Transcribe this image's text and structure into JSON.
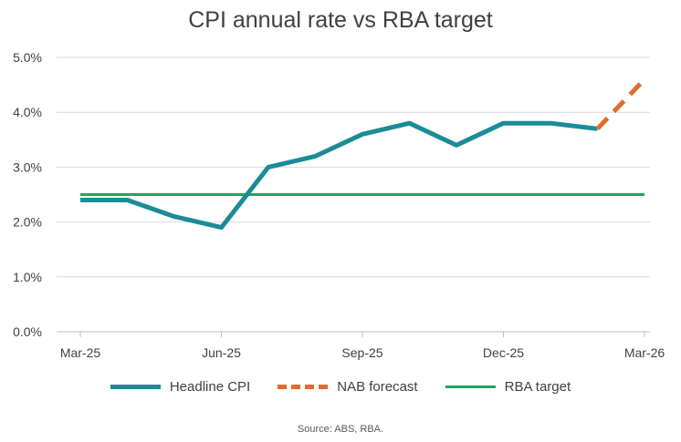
{
  "chart_data": {
    "type": "line",
    "title": "CPI annual rate vs RBA target",
    "x": [
      "Mar-25",
      "Apr-25",
      "May-25",
      "Jun-25",
      "Jul-25",
      "Aug-25",
      "Sep-25",
      "Oct-25",
      "Nov-25",
      "Dec-25",
      "Jan-26",
      "Feb-26",
      "Mar-26"
    ],
    "x_tick_labels": [
      "Mar-25",
      "Jun-25",
      "Sep-25",
      "Dec-25",
      "Mar-26"
    ],
    "ylim": [
      0,
      5
    ],
    "y_tick_labels": [
      "0.0%",
      "1.0%",
      "2.0%",
      "3.0%",
      "4.0%",
      "5.0%"
    ],
    "series": [
      {
        "name": "Headline CPI",
        "color": "#1a8c96",
        "style": "solid",
        "values": [
          2.4,
          2.4,
          2.1,
          1.9,
          3.0,
          3.2,
          3.6,
          3.8,
          3.4,
          3.8,
          3.8,
          3.7,
          null
        ]
      },
      {
        "name": "NAB forecast",
        "color": "#e06c2e",
        "style": "dashed",
        "values": [
          null,
          null,
          null,
          null,
          null,
          null,
          null,
          null,
          null,
          null,
          null,
          3.7,
          4.6
        ]
      },
      {
        "name": "RBA target",
        "color": "#1fa65c",
        "style": "solid",
        "values": [
          2.5,
          2.5,
          2.5,
          2.5,
          2.5,
          2.5,
          2.5,
          2.5,
          2.5,
          2.5,
          2.5,
          2.5,
          2.5
        ]
      }
    ],
    "legend_position": "bottom",
    "grid": true,
    "source": "Source: ABS, RBA."
  }
}
